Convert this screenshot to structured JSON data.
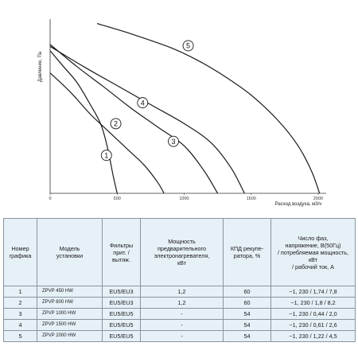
{
  "chart_data": {
    "type": "line",
    "title": "",
    "xlabel": "Расход воздуха, м3/ч",
    "ylabel": "Давление, Па",
    "xlim": [
      0,
      2000
    ],
    "ylim": [
      0,
      270
    ],
    "x_ticks": [
      "0",
      "500",
      "1000",
      "1500",
      "2000"
    ],
    "grid": false,
    "series": [
      {
        "name": "1",
        "points": [
          [
            0,
            225
          ],
          [
            100,
            200
          ],
          [
            200,
            175
          ],
          [
            300,
            140
          ],
          [
            380,
            108
          ],
          [
            430,
            70
          ],
          [
            470,
            28
          ],
          [
            500,
            0
          ]
        ]
      },
      {
        "name": "2",
        "points": [
          [
            0,
            190
          ],
          [
            150,
            160
          ],
          [
            300,
            125
          ],
          [
            450,
            95
          ],
          [
            600,
            65
          ],
          [
            700,
            45
          ],
          [
            800,
            18
          ],
          [
            850,
            0
          ]
        ]
      },
      {
        "name": "3",
        "points": [
          [
            0,
            235
          ],
          [
            200,
            200
          ],
          [
            400,
            168
          ],
          [
            600,
            135
          ],
          [
            800,
            105
          ],
          [
            1000,
            75
          ],
          [
            1150,
            35
          ],
          [
            1250,
            0
          ]
        ]
      },
      {
        "name": "4",
        "points": [
          [
            0,
            232
          ],
          [
            250,
            200
          ],
          [
            500,
            170
          ],
          [
            750,
            140
          ],
          [
            1000,
            110
          ],
          [
            1200,
            80
          ],
          [
            1350,
            40
          ],
          [
            1450,
            0
          ]
        ]
      },
      {
        "name": "5",
        "points": [
          [
            350,
            268
          ],
          [
            600,
            252
          ],
          [
            900,
            230
          ],
          [
            1100,
            210
          ],
          [
            1300,
            185
          ],
          [
            1500,
            155
          ],
          [
            1700,
            115
          ],
          [
            1850,
            75
          ],
          [
            1950,
            35
          ],
          [
            2010,
            0
          ]
        ]
      }
    ],
    "circle_labels": [
      {
        "text": "1",
        "x": 420,
        "y": 60
      },
      {
        "text": "2",
        "x": 490,
        "y": 110
      },
      {
        "text": "3",
        "x": 920,
        "y": 82
      },
      {
        "text": "4",
        "x": 690,
        "y": 143
      },
      {
        "text": "5",
        "x": 1030,
        "y": 233
      }
    ]
  },
  "table": {
    "headers": [
      "Номер\nграфика",
      "Модель\nустановки",
      "Фильтры\nприт. /\nвытяж.",
      "Мощность\nпредварительного\nэлектронагревателя,\nкВт",
      "КПД рекупе-\nратора, %",
      "Число фаз,\nнапряжение, В(50Гц)\n/ потребляемая мощность,\nкВт\n/ рабочий ток, А"
    ],
    "rows": [
      [
        "1",
        "ZPVP 450 HW",
        "EU5/EU3",
        "1,2",
        "60",
        "~1, 230 / 1,74 / 7,8"
      ],
      [
        "2",
        "ZPVP 800 HW",
        "EU5/EU3",
        "1,2",
        "60",
        "~1, 230 / 1,8 / 8,2"
      ],
      [
        "3",
        "ZPVP 1000 HW",
        "EU5/EU5",
        "-",
        "54",
        "~1, 230 / 0,44 / 2,0"
      ],
      [
        "4",
        "ZPVP 1500 HW",
        "EU5/EU5",
        "-",
        "54",
        "~1, 230 / 0,61 / 2,6"
      ],
      [
        "5",
        "ZPVP 2000 HW",
        "EU5/EU5",
        "-",
        "54",
        "~1, 230 / 1,22 / 4,5"
      ]
    ]
  }
}
